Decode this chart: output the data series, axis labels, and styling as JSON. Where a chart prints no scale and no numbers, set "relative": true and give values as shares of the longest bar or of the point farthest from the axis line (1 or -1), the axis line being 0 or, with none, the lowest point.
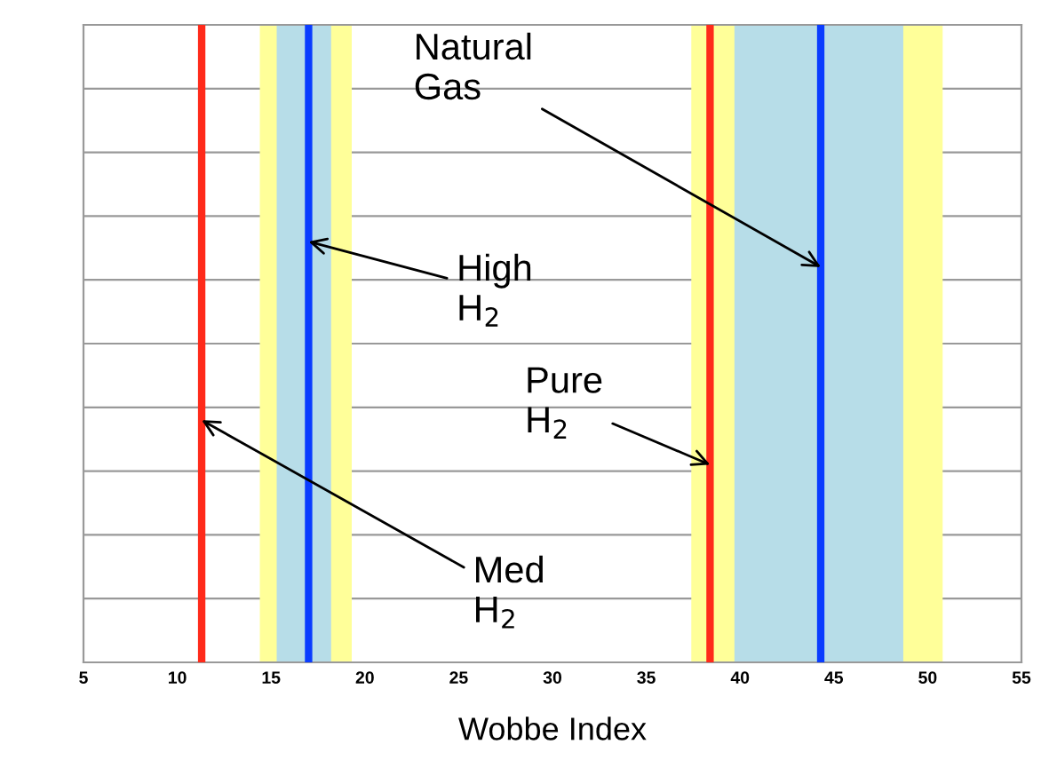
{
  "chart_data": {
    "type": "line",
    "xlabel": "Wobbe Index",
    "relative": true,
    "xlim": [
      5,
      55
    ],
    "xticks": [
      5,
      10,
      15,
      20,
      25,
      30,
      35,
      40,
      45,
      50,
      55
    ],
    "grid": "y",
    "bands": [
      {
        "axis": "x",
        "from": 14.4,
        "to": 19.3,
        "color": "#ffff99"
      },
      {
        "axis": "x",
        "from": 15.3,
        "to": 18.2,
        "color": "#b7dde8"
      },
      {
        "axis": "x",
        "from": 37.4,
        "to": 50.8,
        "color": "#ffff99"
      },
      {
        "axis": "x",
        "from": 39.7,
        "to": 48.7,
        "color": "#b7dde8"
      }
    ],
    "series": [
      {
        "color": "#ff2a1a",
        "x": [
          11.3,
          11.3
        ],
        "values": [
          0,
          1
        ]
      },
      {
        "color": "#ff2a1a",
        "x": [
          38.4,
          38.4
        ],
        "values": [
          0,
          1
        ]
      },
      {
        "color": "#0a3cff",
        "x": [
          17.0,
          17.0
        ],
        "values": [
          0,
          1
        ]
      },
      {
        "color": "#0a3cff",
        "x": [
          44.3,
          44.3
        ],
        "values": [
          0,
          1
        ]
      }
    ],
    "annotations": [
      {
        "text": "Natural\nGas",
        "x": 44.3,
        "y": 0.62
      },
      {
        "text": "High\nH$_{2}$",
        "x": 17.0,
        "y": 0.66
      },
      {
        "text": "Pure\nH$_{2}$",
        "x": 38.4,
        "y": 0.31
      },
      {
        "text": "Med\nH$_{2}$",
        "x": 11.3,
        "y": 0.38
      }
    ]
  }
}
